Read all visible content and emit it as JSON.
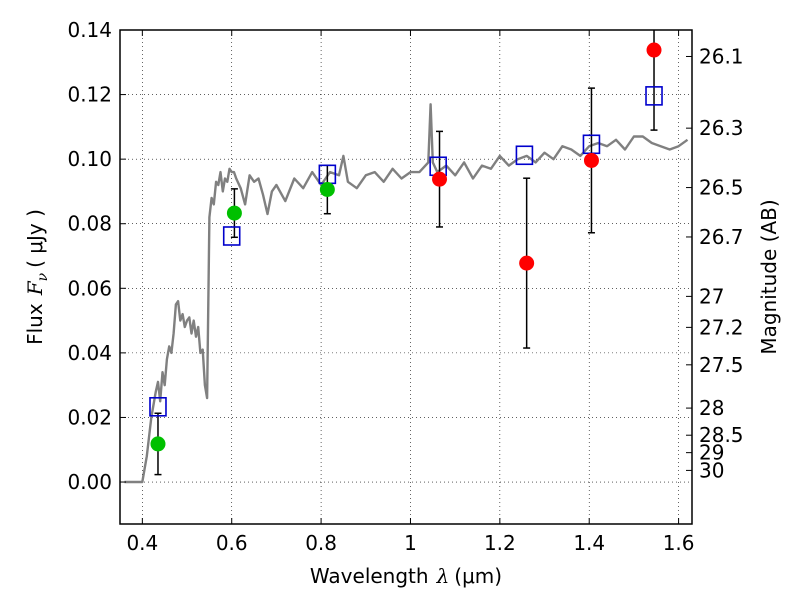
{
  "chart_data": {
    "type": "scatter",
    "xlabel_text": "Wavelength",
    "xlabel_symbol": "λ",
    "xlabel_unit": "(μm)",
    "ylabel_text": "Flux",
    "ylabel_symbol": "F",
    "ylabel_sub": "ν",
    "ylabel_unit": "( μJy )",
    "y2label": "Magnitude (AB)",
    "xlim": [
      0.35,
      1.63
    ],
    "ylim": [
      -0.013,
      0.14
    ],
    "grid": true,
    "x_ticks": [
      {
        "value": 0.4,
        "label": "0.4"
      },
      {
        "value": 0.6,
        "label": "0.6"
      },
      {
        "value": 0.8,
        "label": "0.8"
      },
      {
        "value": 1.0,
        "label": "1"
      },
      {
        "value": 1.2,
        "label": "1.2"
      },
      {
        "value": 1.4,
        "label": "1.4"
      },
      {
        "value": 1.6,
        "label": "1.6"
      }
    ],
    "y_ticks": [
      {
        "value": 0.0,
        "label": "0.00"
      },
      {
        "value": 0.02,
        "label": "0.02"
      },
      {
        "value": 0.04,
        "label": "0.04"
      },
      {
        "value": 0.06,
        "label": "0.06"
      },
      {
        "value": 0.08,
        "label": "0.08"
      },
      {
        "value": 0.1,
        "label": "0.10"
      },
      {
        "value": 0.12,
        "label": "0.12"
      },
      {
        "value": 0.14,
        "label": "0.14"
      }
    ],
    "y2_ticks": [
      {
        "flux": 0.1318,
        "label": "26.1"
      },
      {
        "flux": 0.1096,
        "label": "26.3"
      },
      {
        "flux": 0.0912,
        "label": "26.5"
      },
      {
        "flux": 0.0759,
        "label": "26.7"
      },
      {
        "flux": 0.0575,
        "label": "27"
      },
      {
        "flux": 0.0479,
        "label": "27.2"
      },
      {
        "flux": 0.0363,
        "label": "27.5"
      },
      {
        "flux": 0.0229,
        "label": "28"
      },
      {
        "flux": 0.0145,
        "label": "28.5"
      },
      {
        "flux": 0.0091,
        "label": "29"
      },
      {
        "flux": 0.0036,
        "label": "30"
      }
    ],
    "colors": {
      "sed": "#808080",
      "green": "#00c000",
      "red": "#ff0000",
      "model_box": "#0000cc",
      "errorbar": "#000000"
    },
    "series": [
      {
        "kind": "sed_model",
        "x": [
          0.36,
          0.39,
          0.4,
          0.41,
          0.42,
          0.43,
          0.435,
          0.44,
          0.445,
          0.45,
          0.455,
          0.46,
          0.465,
          0.47,
          0.475,
          0.48,
          0.485,
          0.49,
          0.495,
          0.5,
          0.505,
          0.51,
          0.515,
          0.52,
          0.525,
          0.53,
          0.535,
          0.54,
          0.545,
          0.55,
          0.555,
          0.56,
          0.565,
          0.57,
          0.575,
          0.58,
          0.585,
          0.59,
          0.595,
          0.6,
          0.605,
          0.61,
          0.62,
          0.63,
          0.64,
          0.65,
          0.66,
          0.67,
          0.68,
          0.69,
          0.7,
          0.72,
          0.74,
          0.76,
          0.78,
          0.8,
          0.82,
          0.84,
          0.85,
          0.86,
          0.88,
          0.9,
          0.92,
          0.94,
          0.96,
          0.98,
          1.0,
          1.02,
          1.04,
          1.045,
          1.05,
          1.06,
          1.08,
          1.1,
          1.12,
          1.14,
          1.16,
          1.18,
          1.2,
          1.22,
          1.24,
          1.26,
          1.28,
          1.3,
          1.32,
          1.34,
          1.36,
          1.38,
          1.4,
          1.42,
          1.44,
          1.46,
          1.48,
          1.5,
          1.52,
          1.54,
          1.56,
          1.58,
          1.6,
          1.62
        ],
        "y": [
          0.0,
          0.0,
          0.0,
          0.008,
          0.02,
          0.028,
          0.031,
          0.025,
          0.034,
          0.03,
          0.038,
          0.042,
          0.04,
          0.046,
          0.055,
          0.056,
          0.05,
          0.052,
          0.048,
          0.05,
          0.051,
          0.046,
          0.05,
          0.045,
          0.048,
          0.04,
          0.041,
          0.03,
          0.026,
          0.082,
          0.088,
          0.086,
          0.093,
          0.092,
          0.096,
          0.09,
          0.094,
          0.093,
          0.097,
          0.096,
          0.096,
          0.094,
          0.091,
          0.086,
          0.095,
          0.093,
          0.094,
          0.089,
          0.083,
          0.09,
          0.092,
          0.087,
          0.094,
          0.091,
          0.096,
          0.092,
          0.096,
          0.095,
          0.101,
          0.093,
          0.091,
          0.095,
          0.096,
          0.093,
          0.097,
          0.094,
          0.096,
          0.096,
          0.099,
          0.117,
          0.099,
          0.096,
          0.098,
          0.095,
          0.099,
          0.094,
          0.098,
          0.097,
          0.101,
          0.098,
          0.1,
          0.101,
          0.099,
          0.102,
          0.1,
          0.104,
          0.103,
          0.101,
          0.104,
          0.105,
          0.104,
          0.106,
          0.103,
          0.107,
          0.107,
          0.105,
          0.104,
          0.103,
          0.104,
          0.106
        ]
      },
      {
        "kind": "observed_green",
        "x": [
          0.435,
          0.606,
          0.814
        ],
        "y": [
          0.0118,
          0.0833,
          0.0906
        ],
        "err": [
          0.0095,
          0.0075,
          0.0075
        ]
      },
      {
        "kind": "observed_red",
        "x": [
          1.065,
          1.26,
          1.405,
          1.545
        ],
        "y": [
          0.0938,
          0.0678,
          0.0996,
          0.1338
        ],
        "err": [
          0.0148,
          0.0263,
          0.0224,
          0.0248
        ]
      },
      {
        "kind": "model_bandpass",
        "x": [
          0.435,
          0.6,
          0.814,
          1.062,
          1.255,
          1.405,
          1.545
        ],
        "y": [
          0.0233,
          0.0762,
          0.0953,
          0.0978,
          0.1012,
          0.1046,
          0.1196
        ]
      }
    ]
  }
}
